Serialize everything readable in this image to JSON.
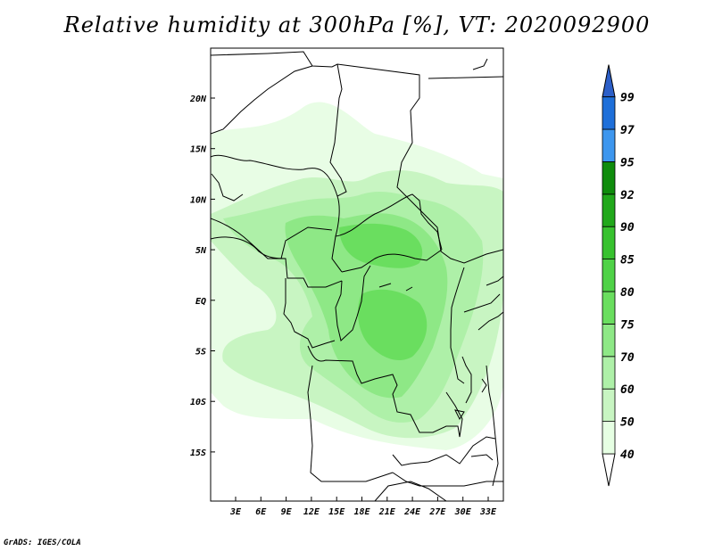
{
  "title": "Relative humidity at 300hPa [%], VT: 2020092900",
  "credit": "GrADS: IGES/COLA",
  "map": {
    "lon_ticks": [
      "3E",
      "6E",
      "9E",
      "12E",
      "15E",
      "18E",
      "21E",
      "24E",
      "27E",
      "30E",
      "33E"
    ],
    "lat_ticks": [
      "20N",
      "15N",
      "10N",
      "5N",
      "EQ",
      "5S",
      "10S",
      "15S"
    ]
  },
  "colorbar": {
    "levels": [
      "40",
      "50",
      "60",
      "70",
      "75",
      "80",
      "85",
      "90",
      "92",
      "95",
      "97",
      "99"
    ],
    "colors": [
      "#ffffff",
      "#e6ffe3",
      "#c8f5c2",
      "#aef0a8",
      "#8ee886",
      "#6ade5f",
      "#4fd247",
      "#38c22f",
      "#21a81b",
      "#0f8c0c",
      "#3d96ee",
      "#1e6fd9",
      "#2c5fc8"
    ]
  }
}
